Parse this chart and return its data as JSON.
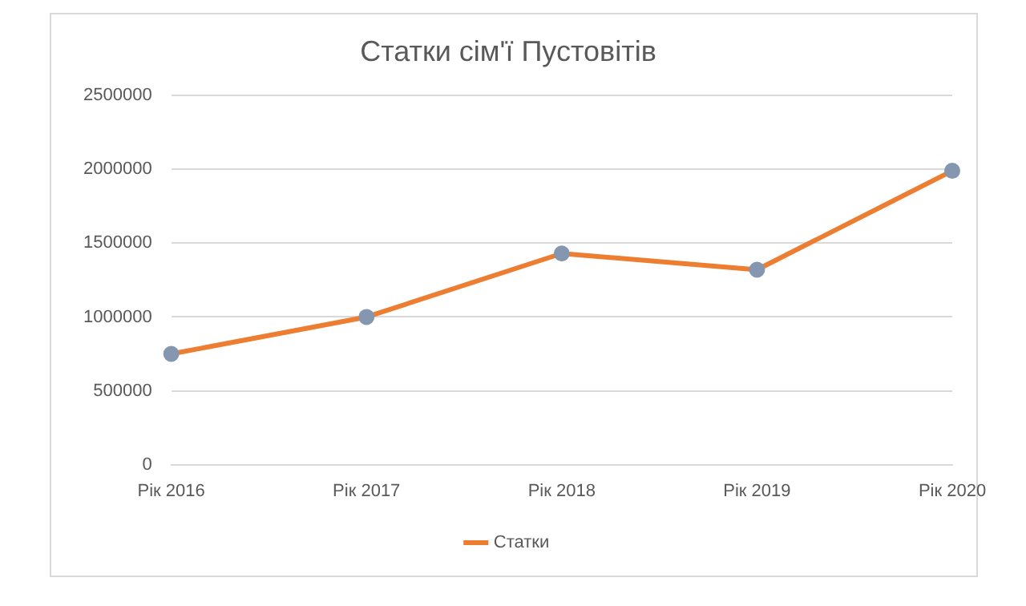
{
  "chart_data": {
    "type": "line",
    "title": "Статки сім'ї Пустовітів",
    "categories": [
      "Рік 2016",
      "Рік 2017",
      "Рік 2018",
      "Рік 2019",
      "Рік 2020"
    ],
    "series": [
      {
        "name": "Статки",
        "color": "#ed7d31",
        "values": [
          750000,
          1000000,
          1430000,
          1320000,
          1990000
        ]
      }
    ],
    "ylim": [
      0,
      2500000
    ],
    "yticks": [
      0,
      500000,
      1000000,
      1500000,
      2000000,
      2500000
    ],
    "grid": "y",
    "legend": "bottom",
    "marker": "circle",
    "line_style": "solid"
  }
}
